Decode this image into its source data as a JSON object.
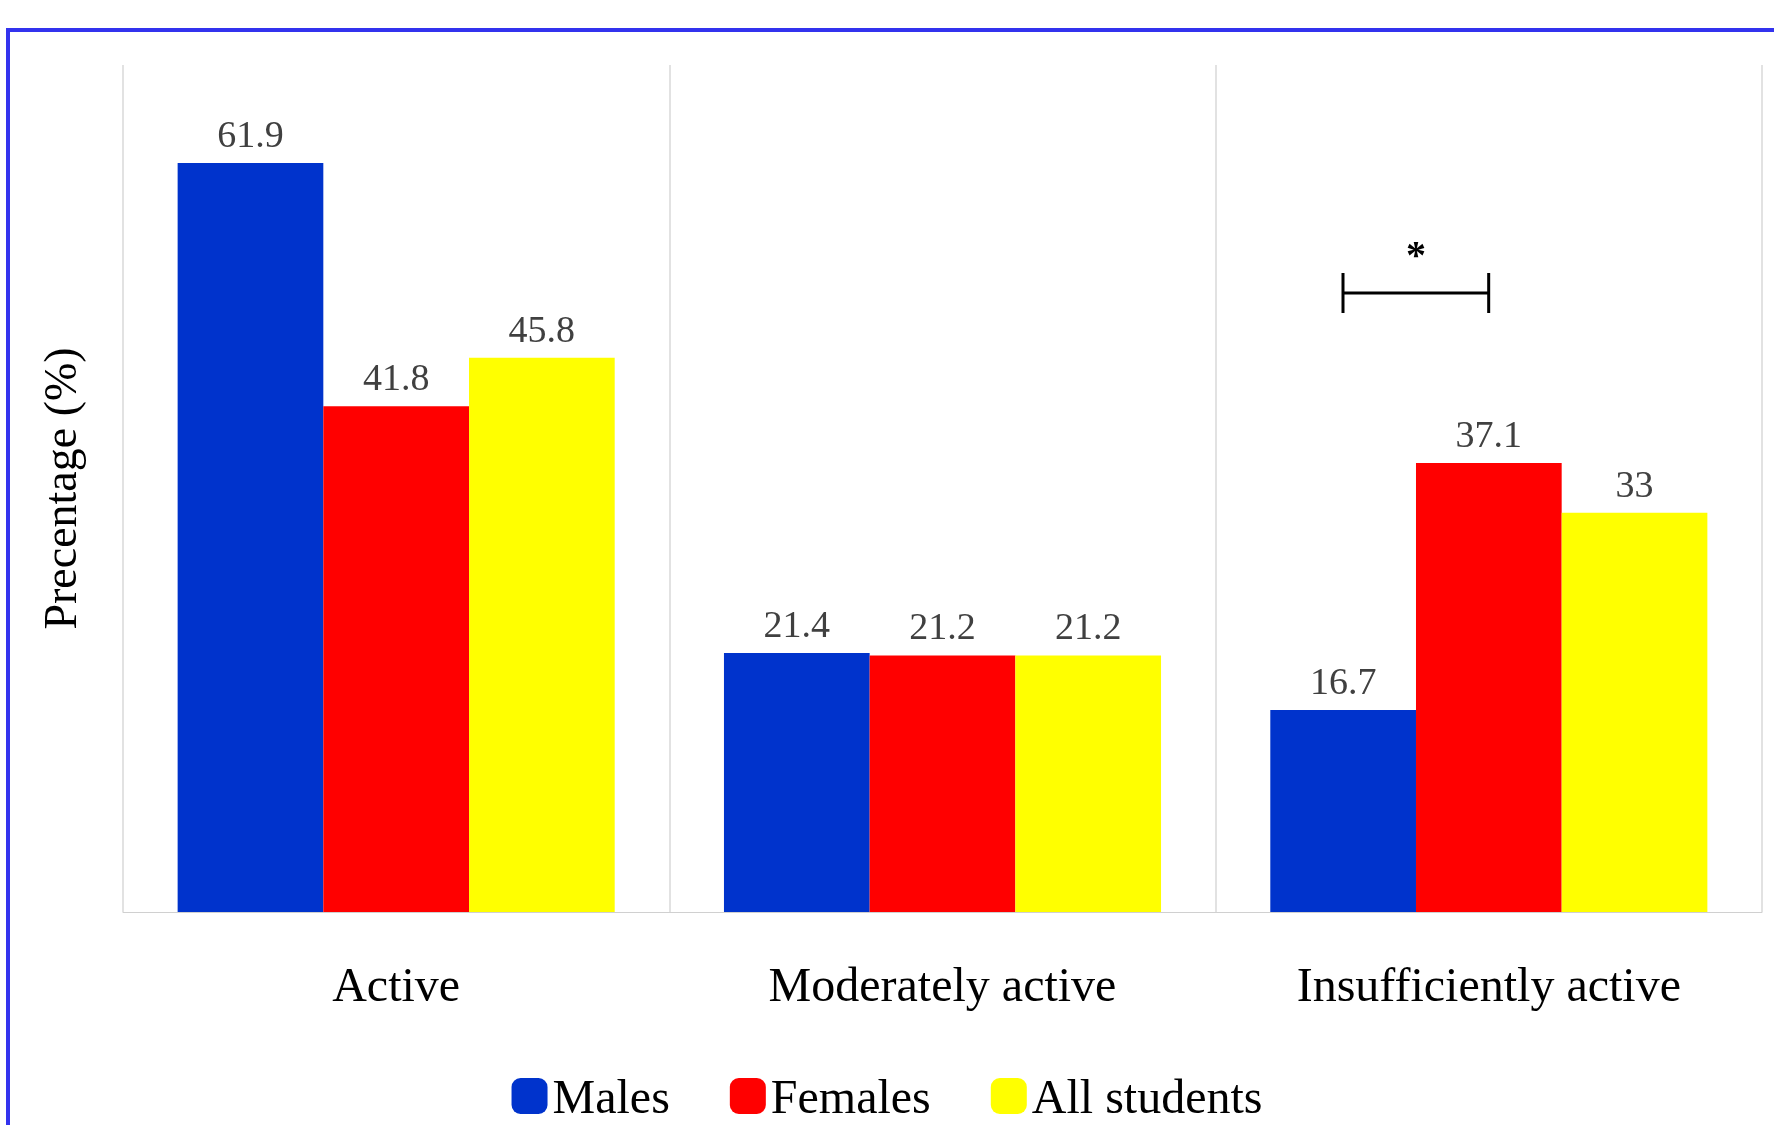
{
  "chart_data": {
    "type": "bar",
    "ylabel": "Precentage (%)",
    "categories": [
      "Active",
      "Moderately active",
      "Insufficiently active"
    ],
    "series": [
      {
        "name": "Males",
        "color": "#0033cc",
        "values": [
          61.9,
          21.4,
          16.7
        ]
      },
      {
        "name": "Females",
        "color": "#ff0000",
        "values": [
          41.8,
          21.2,
          37.1
        ]
      },
      {
        "name": "All students",
        "color": "#ffff00",
        "values": [
          45.8,
          21.2,
          33
        ]
      }
    ],
    "data_labels": true,
    "grid": "x",
    "legend": "bottom",
    "tick_labels": "x",
    "annotations": [
      "*"
    ]
  }
}
